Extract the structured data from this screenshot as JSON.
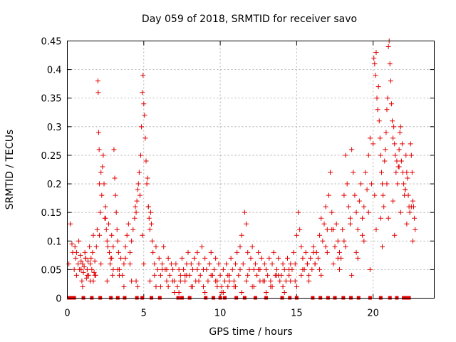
{
  "chart_data": {
    "type": "scatter",
    "title": "Day 059 of 2018, SRMTID for receiver savo",
    "xlabel": "GPS time / hours",
    "ylabel": "SRMTID / TECUs",
    "xlim": [
      0,
      24
    ],
    "ylim": [
      0,
      0.45
    ],
    "grid": true,
    "legend": "none",
    "marker": "+",
    "color": "#e00000",
    "xticks": [
      0,
      5,
      10,
      15,
      20
    ],
    "xtick_labels": [
      "0",
      "5",
      "10",
      "15",
      "20"
    ],
    "yticks": [
      0,
      0.05,
      0.1,
      0.15,
      0.2,
      0.25,
      0.3,
      0.35,
      0.4,
      0.45
    ],
    "ytick_labels": [
      "0",
      "0.05",
      "0.1",
      "0.15",
      "0.2",
      "0.25",
      "0.3",
      "0.35",
      "0.4",
      "0.45"
    ],
    "zero_markers_x": [
      0.1,
      0.25,
      0.45,
      1.05,
      1.6,
      2.15,
      2.85,
      3.3,
      3.75,
      4.55,
      4.9,
      5.5,
      6.05,
      7.25,
      7.5,
      8.0,
      9.05,
      9.55,
      10.0,
      10.3,
      11.05,
      11.6,
      12.3,
      13.0,
      14.05,
      14.55,
      15.0,
      16.05,
      16.55,
      17.05,
      17.5,
      18.05,
      18.55,
      19.05,
      19.8,
      20.5,
      21.1,
      21.55,
      22.0,
      22.15,
      22.25,
      22.35
    ],
    "series": [
      {
        "name": "SRMTID",
        "x": [
          0.1,
          0.2,
          0.3,
          0.35,
          0.45,
          0.5,
          0.55,
          0.6,
          0.7,
          0.75,
          0.8,
          0.85,
          0.9,
          0.95,
          1.0,
          1.05,
          1.1,
          1.15,
          1.2,
          1.25,
          1.3,
          1.35,
          1.4,
          1.45,
          1.5,
          1.55,
          1.6,
          1.65,
          1.7,
          1.75,
          1.8,
          1.85,
          1.9,
          1.95,
          2.0,
          2.02,
          2.05,
          2.08,
          2.1,
          2.15,
          2.2,
          2.25,
          2.3,
          2.35,
          2.4,
          2.45,
          2.5,
          2.55,
          2.6,
          2.65,
          2.7,
          2.75,
          2.8,
          2.85,
          2.9,
          2.95,
          3.0,
          3.05,
          3.1,
          3.15,
          3.2,
          3.25,
          3.3,
          3.35,
          3.4,
          3.5,
          3.6,
          3.7,
          3.8,
          3.9,
          4.0,
          4.1,
          4.2,
          4.3,
          4.4,
          4.45,
          4.5,
          4.55,
          4.6,
          4.65,
          4.7,
          4.75,
          4.8,
          4.85,
          4.9,
          4.95,
          5.0,
          5.05,
          5.1,
          5.15,
          5.2,
          5.25,
          5.3,
          5.35,
          5.4,
          5.45,
          5.5,
          5.55,
          5.6,
          5.7,
          5.8,
          5.9,
          6.0,
          6.1,
          6.2,
          6.3,
          6.4,
          6.5,
          6.6,
          6.7,
          6.8,
          6.9,
          7.0,
          7.1,
          7.2,
          7.3,
          7.4,
          7.5,
          7.6,
          7.7,
          7.8,
          7.9,
          8.0,
          8.1,
          8.2,
          8.3,
          8.4,
          8.5,
          8.6,
          8.7,
          8.8,
          8.9,
          9.0,
          9.1,
          9.2,
          9.3,
          9.4,
          9.5,
          9.6,
          9.7,
          9.8,
          9.9,
          10.0,
          10.1,
          10.2,
          10.3,
          10.4,
          10.5,
          10.6,
          10.7,
          10.8,
          10.9,
          11.0,
          11.1,
          11.2,
          11.3,
          11.4,
          11.5,
          11.6,
          11.7,
          11.8,
          11.9,
          12.0,
          12.1,
          12.2,
          12.3,
          12.4,
          12.5,
          12.6,
          12.7,
          12.8,
          12.9,
          13.0,
          13.1,
          13.2,
          13.3,
          13.4,
          13.5,
          13.6,
          13.7,
          13.8,
          13.9,
          14.0,
          14.1,
          14.2,
          14.3,
          14.4,
          14.5,
          14.6,
          14.7,
          14.8,
          14.9,
          15.0,
          15.1,
          15.2,
          15.3,
          15.4,
          15.5,
          15.6,
          15.7,
          15.8,
          15.9,
          16.0,
          16.1,
          16.2,
          16.3,
          16.4,
          16.5,
          16.6,
          16.7,
          16.8,
          16.9,
          17.0,
          17.1,
          17.2,
          17.3,
          17.4,
          17.5,
          17.6,
          17.7,
          17.8,
          17.9,
          18.0,
          18.1,
          18.2,
          18.3,
          18.4,
          18.5,
          18.6,
          18.7,
          18.8,
          18.9,
          19.0,
          19.1,
          19.2,
          19.3,
          19.4,
          19.5,
          19.6,
          19.7,
          19.8,
          19.9,
          20.0,
          20.05,
          20.1,
          20.15,
          20.2,
          20.25,
          20.3,
          20.35,
          20.4,
          20.45,
          20.5,
          20.55,
          20.6,
          20.65,
          20.7,
          20.75,
          20.8,
          20.85,
          20.9,
          20.95,
          21.0,
          21.05,
          21.1,
          21.15,
          21.2,
          21.25,
          21.3,
          21.35,
          21.4,
          21.45,
          21.5,
          21.55,
          21.6,
          21.65,
          21.7,
          21.75,
          21.8,
          21.85,
          21.9,
          21.95,
          22.0,
          22.05,
          22.1,
          22.15,
          22.2,
          22.25,
          22.3,
          22.35,
          22.4,
          22.45,
          22.5,
          22.55,
          22.6,
          22.65,
          22.7,
          22.75,
          0.6,
          0.9,
          1.2,
          1.5,
          1.8,
          2.2,
          2.6,
          3.0,
          3.4,
          3.8,
          4.2,
          4.6,
          5.0,
          5.4,
          5.8,
          6.2,
          6.6,
          7.0,
          7.4,
          7.8,
          8.2,
          8.6,
          9.0,
          9.4,
          9.8,
          10.2,
          10.6,
          11.0,
          11.4,
          11.8,
          12.2,
          12.6,
          13.0,
          13.4,
          13.8,
          14.2,
          14.6,
          15.0,
          15.4,
          15.8,
          16.2,
          16.6,
          17.0,
          17.4,
          17.8,
          18.2,
          18.6,
          19.0,
          19.4,
          19.8,
          20.2,
          20.6,
          21.0,
          21.4,
          21.8,
          22.2,
          22.6,
          1.0,
          1.3,
          1.7,
          2.1,
          2.5,
          2.9,
          3.3,
          3.7,
          4.1,
          4.5,
          4.9,
          5.3,
          5.7,
          6.1,
          6.5,
          6.9,
          7.3,
          7.7,
          8.1,
          8.5,
          8.9,
          9.3,
          9.7,
          10.1,
          10.5,
          10.9,
          11.3,
          11.7,
          12.1,
          12.5,
          12.9,
          13.3,
          13.7,
          14.1,
          14.5,
          14.9,
          15.3,
          15.7,
          16.1,
          16.5,
          16.9,
          17.3,
          17.7,
          18.1,
          18.5,
          18.9,
          19.3,
          19.7,
          20.1,
          20.5,
          20.9,
          21.3,
          21.7,
          22.1,
          22.5
        ],
        "y": [
          0.06,
          0.13,
          0.095,
          0.08,
          0.05,
          0.09,
          0.07,
          0.04,
          0.06,
          0.1,
          0.05,
          0.075,
          0.065,
          0.03,
          0.06,
          0.045,
          0.055,
          0.08,
          0.07,
          0.035,
          0.05,
          0.065,
          0.04,
          0.09,
          0.06,
          0.07,
          0.05,
          0.08,
          0.11,
          0.045,
          0.065,
          0.04,
          0.09,
          0.12,
          0.38,
          0.36,
          0.29,
          0.26,
          0.2,
          0.15,
          0.22,
          0.18,
          0.23,
          0.25,
          0.2,
          0.14,
          0.16,
          0.12,
          0.1,
          0.09,
          0.13,
          0.08,
          0.06,
          0.07,
          0.11,
          0.04,
          0.09,
          0.26,
          0.21,
          0.18,
          0.15,
          0.12,
          0.1,
          0.08,
          0.05,
          0.07,
          0.04,
          0.06,
          0.09,
          0.11,
          0.13,
          0.08,
          0.1,
          0.12,
          0.14,
          0.16,
          0.15,
          0.17,
          0.19,
          0.2,
          0.22,
          0.18,
          0.25,
          0.3,
          0.36,
          0.39,
          0.34,
          0.32,
          0.28,
          0.24,
          0.2,
          0.21,
          0.16,
          0.14,
          0.12,
          0.15,
          0.13,
          0.1,
          0.08,
          0.06,
          0.09,
          0.05,
          0.07,
          0.04,
          0.06,
          0.09,
          0.05,
          0.03,
          0.07,
          0.04,
          0.06,
          0.05,
          0.03,
          0.06,
          0.02,
          0.05,
          0.04,
          0.07,
          0.05,
          0.03,
          0.06,
          0.08,
          0.04,
          0.06,
          0.05,
          0.07,
          0.03,
          0.08,
          0.06,
          0.04,
          0.09,
          0.05,
          0.07,
          0.05,
          0.03,
          0.06,
          0.08,
          0.04,
          0.05,
          0.07,
          0.03,
          0.06,
          0.04,
          0.02,
          0.05,
          0.03,
          0.06,
          0.02,
          0.04,
          0.07,
          0.05,
          0.03,
          0.06,
          0.08,
          0.04,
          0.09,
          0.11,
          0.06,
          0.15,
          0.13,
          0.08,
          0.05,
          0.07,
          0.09,
          0.05,
          0.06,
          0.04,
          0.08,
          0.05,
          0.07,
          0.03,
          0.06,
          0.05,
          0.04,
          0.07,
          0.03,
          0.06,
          0.08,
          0.04,
          0.05,
          0.07,
          0.03,
          0.04,
          0.06,
          0.05,
          0.03,
          0.07,
          0.04,
          0.06,
          0.05,
          0.08,
          0.06,
          0.11,
          0.15,
          0.12,
          0.09,
          0.07,
          0.05,
          0.08,
          0.06,
          0.04,
          0.07,
          0.05,
          0.09,
          0.06,
          0.08,
          0.07,
          0.11,
          0.14,
          0.1,
          0.13,
          0.16,
          0.12,
          0.18,
          0.22,
          0.15,
          0.12,
          0.09,
          0.13,
          0.1,
          0.08,
          0.07,
          0.12,
          0.18,
          0.25,
          0.2,
          0.16,
          0.14,
          0.26,
          0.22,
          0.18,
          0.15,
          0.12,
          0.17,
          0.2,
          0.14,
          0.16,
          0.22,
          0.19,
          0.25,
          0.28,
          0.2,
          0.27,
          0.42,
          0.41,
          0.39,
          0.43,
          0.35,
          0.33,
          0.37,
          0.31,
          0.28,
          0.25,
          0.22,
          0.2,
          0.18,
          0.16,
          0.24,
          0.26,
          0.29,
          0.33,
          0.35,
          0.44,
          0.45,
          0.41,
          0.38,
          0.34,
          0.31,
          0.28,
          0.3,
          0.27,
          0.25,
          0.22,
          0.24,
          0.2,
          0.23,
          0.26,
          0.29,
          0.3,
          0.24,
          0.27,
          0.22,
          0.2,
          0.18,
          0.19,
          0.25,
          0.22,
          0.21,
          0.18,
          0.16,
          0.15,
          0.27,
          0.25,
          0.22,
          0.17,
          0.16,
          0.14,
          0.12,
          0.08,
          0.05,
          0.07,
          0.03,
          0.04,
          0.06,
          0.03,
          0.05,
          0.04,
          0.07,
          0.03,
          0.02,
          0.06,
          0.03,
          0.02,
          0.05,
          0.02,
          0.01,
          0.03,
          0.04,
          0.02,
          0.03,
          0.01,
          0.04,
          0.02,
          0.01,
          0.03,
          0.02,
          0.01,
          0.04,
          0.02,
          0.03,
          0.01,
          0.02,
          0.04,
          0.01,
          0.03,
          0.02,
          0.05,
          0.03,
          0.06,
          0.04,
          0.08,
          0.06,
          0.05,
          0.09,
          0.04,
          0.07,
          0.1,
          0.05,
          0.12,
          0.09,
          0.14,
          0.11,
          0.15,
          0.13,
          0.1,
          0.02,
          0.04,
          0.03,
          0.11,
          0.14,
          0.07,
          0.05,
          0.02,
          0.06,
          0.03,
          0.11,
          0.16,
          0.04,
          0.02,
          0.05,
          0.03,
          0.01,
          0.04,
          0.02,
          0.05,
          0.02,
          0.06,
          0.03,
          0.01,
          0.04,
          0.02,
          0.05,
          0.03,
          0.02,
          0.05,
          0.03,
          0.02,
          0.04,
          0.02,
          0.05,
          0.03,
          0.04,
          0.06,
          0.08,
          0.05,
          0.09,
          0.12,
          0.07,
          0.1,
          0.13,
          0.08,
          0.11,
          0.15,
          0.18,
          0.14,
          0.2,
          0.17,
          0.23,
          0.19,
          0.16
        ]
      }
    ]
  }
}
